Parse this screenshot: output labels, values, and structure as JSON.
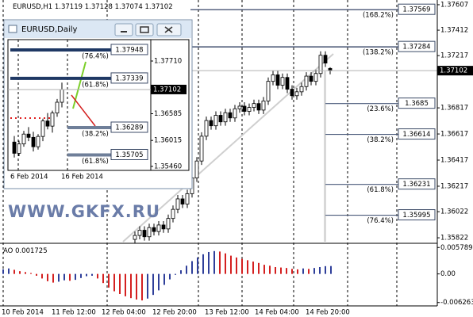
{
  "chart_data": [
    {
      "type": "candlestick",
      "symbol": "EURUSD,H1",
      "open": [
        1.3581,
        1.3584,
        1.3588,
        1.3583,
        1.359,
        1.3587,
        1.3592,
        1.3589,
        1.3597,
        1.3604,
        1.3612,
        1.3608,
        1.3616,
        1.3628,
        1.3641,
        1.366,
        1.3672,
        1.3668,
        1.3676,
        1.3671,
        1.3678,
        1.3674,
        1.3681,
        1.3683,
        1.3679,
        1.3682,
        1.3685,
        1.368,
        1.3687,
        1.3702,
        1.3707,
        1.3699,
        1.3705,
        1.3696,
        1.3691,
        1.3694,
        1.3698,
        1.3706,
        1.3702,
        1.3708,
        1.3722,
        1.37119
      ],
      "high": [
        1.3587,
        1.3591,
        1.3591,
        1.3593,
        1.3593,
        1.3595,
        1.3595,
        1.36,
        1.3607,
        1.3615,
        1.3615,
        1.3619,
        1.3631,
        1.3644,
        1.3663,
        1.3675,
        1.3675,
        1.3679,
        1.3679,
        1.3681,
        1.3681,
        1.3684,
        1.3686,
        1.3686,
        1.3685,
        1.3688,
        1.3688,
        1.369,
        1.3705,
        1.371,
        1.371,
        1.3708,
        1.3708,
        1.3699,
        1.3697,
        1.3701,
        1.3709,
        1.3709,
        1.3711,
        1.3725,
        1.3725,
        1.37128
      ],
      "low": [
        1.3578,
        1.3581,
        1.358,
        1.358,
        1.3584,
        1.3584,
        1.3586,
        1.3586,
        1.3594,
        1.3601,
        1.3605,
        1.3605,
        1.3613,
        1.3625,
        1.3638,
        1.3657,
        1.3665,
        1.3665,
        1.3668,
        1.3668,
        1.3671,
        1.3671,
        1.3678,
        1.3676,
        1.3676,
        1.3679,
        1.3677,
        1.3677,
        1.3684,
        1.3699,
        1.3696,
        1.3696,
        1.3693,
        1.3688,
        1.3688,
        1.3691,
        1.3695,
        1.3699,
        1.3699,
        1.3705,
        1.3713,
        1.37074
      ],
      "close": [
        1.3584,
        1.3588,
        1.3583,
        1.359,
        1.3587,
        1.3592,
        1.3589,
        1.3597,
        1.3604,
        1.3612,
        1.3608,
        1.3616,
        1.3628,
        1.3641,
        1.366,
        1.3672,
        1.3668,
        1.3676,
        1.3671,
        1.3678,
        1.3674,
        1.3681,
        1.3683,
        1.3679,
        1.3682,
        1.3685,
        1.368,
        1.3687,
        1.3702,
        1.3707,
        1.3699,
        1.3705,
        1.3696,
        1.3691,
        1.3694,
        1.3698,
        1.3706,
        1.3702,
        1.3708,
        1.3722,
        1.3716,
        1.37102
      ],
      "up_color": "#ffffff",
      "down_color": "#000000",
      "ylim": [
        1.35792,
        1.37643
      ],
      "yticks": [
        1.37607,
        1.37412,
        1.37217,
        1.36817,
        1.36617,
        1.36417,
        1.36217,
        1.36022,
        1.35822
      ],
      "x_labels": [
        "10 Feb 2014",
        "11 Feb 12:00",
        "12 Feb 04:00",
        "12 Feb 20:00",
        "13 Feb 12:00",
        "14 Feb 04:00",
        "14 Feb 20:00"
      ],
      "fib_levels": [
        {
          "label": "(168.2%)",
          "price": 1.37569
        },
        {
          "label": "(138.2%)",
          "price": 1.37284
        },
        {
          "label": "(23.6%)",
          "price": 1.3685
        },
        {
          "label": "(38.2%)",
          "price": 1.36614
        },
        {
          "label": "(61.8%)",
          "price": 1.36231
        },
        {
          "label": "(76.4%)",
          "price": 1.35995
        }
      ],
      "watermark": "WWW.GKFX.RU"
    },
    {
      "type": "histogram",
      "name": "AO",
      "values": [
        0.001,
        0.0012,
        0.0009,
        0.0006,
        0.0004,
        0.0002,
        -0.0004,
        -0.001,
        -0.0016,
        -0.0019,
        -0.0017,
        -0.0014,
        -0.0015,
        -0.0013,
        -0.0009,
        -0.0005,
        -0.0004,
        -0.001,
        -0.002,
        -0.003,
        -0.0038,
        -0.0044,
        -0.0049,
        -0.0053,
        -0.0056,
        -0.0058,
        -0.0054,
        -0.0046,
        -0.0036,
        -0.0024,
        -0.0012,
        -0.0002,
        0.0008,
        0.0018,
        0.0028,
        0.0036,
        0.0043,
        0.0048,
        0.005,
        0.0049,
        0.0045,
        0.004,
        0.0036,
        0.0033,
        0.003,
        0.0027,
        0.0024,
        0.002,
        0.0018,
        0.0015,
        0.0014,
        0.0013,
        0.0011,
        0.001,
        0.0012,
        0.0011,
        0.0013,
        0.0015,
        0.0017,
        0.001725
      ],
      "up_color": "#2f3f9a",
      "down_color": "#d42020",
      "ylim": [
        -0.007005,
        0.006531
      ],
      "yticks": [
        0.005789,
        {
          "value": 0,
          "label": "0.00"
        },
        -0.006263
      ]
    },
    {
      "type": "candlestick",
      "symbol": "EURUSD,Daily",
      "open": [
        1.3598,
        1.3574,
        1.3594,
        1.3615,
        1.3608,
        1.3588,
        1.361,
        1.3643,
        1.3632,
        1.366,
        1.3683
      ],
      "high": [
        1.3611,
        1.3601,
        1.3622,
        1.363,
        1.362,
        1.3615,
        1.3648,
        1.366,
        1.3665,
        1.369,
        1.3725
      ],
      "low": [
        1.3565,
        1.3568,
        1.3588,
        1.36,
        1.3578,
        1.3582,
        1.36,
        1.3625,
        1.3618,
        1.3652,
        1.3672
      ],
      "close": [
        1.3574,
        1.3594,
        1.3615,
        1.3608,
        1.3588,
        1.361,
        1.3643,
        1.3632,
        1.366,
        1.3683,
        1.37102
      ],
      "up_color": "#ffffff",
      "down_color": "#000000",
      "ylim": [
        1.35375,
        1.38167
      ],
      "yticks": [
        {
          "value": 1.3771,
          "label": "1.37710"
        },
        1.36585,
        1.36015,
        {
          "value": 1.3546,
          "label": "1.35460"
        }
      ],
      "x_labels": [
        "6 Feb 2014",
        "16 Feb 2014"
      ],
      "fib_levels": [
        {
          "label": "(76.4%)",
          "price": 1.37948
        },
        {
          "label": "(61.8%)",
          "price": 1.37339
        },
        {
          "label": "(38.2%)",
          "price": 1.36289
        },
        {
          "label": "(61.8%)",
          "price": 1.35705
        }
      ]
    }
  ]
}
